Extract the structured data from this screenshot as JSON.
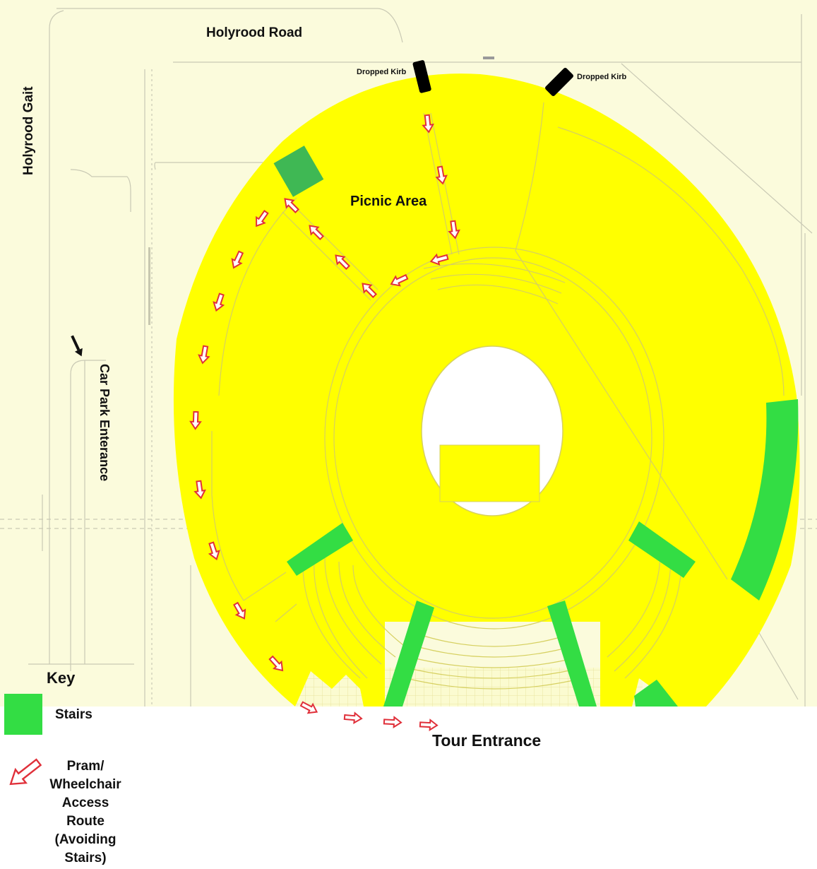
{
  "map": {
    "colors": {
      "site": "#ffff00",
      "stairs": "#33dd44",
      "stairs_dark": "#3fb854",
      "route_arrow": "#e0303a",
      "background": "#fbfbdc",
      "kerb": "#000000"
    },
    "labels": {
      "road_top": "Holyrood Road",
      "road_left": "Holyrood Gait",
      "car_park": "Car Park Enterance",
      "picnic": "Picnic Area",
      "kerb_1": "Dropped Kirb",
      "kerb_2": "Dropped Kirb",
      "tour_entrance": "Tour Entrance"
    },
    "key": {
      "title": "Key",
      "stairs_label": "Stairs",
      "route_label_lines": [
        "Pram/",
        "Wheelchair",
        "Access",
        "Route",
        "(Avoiding",
        "Stairs)"
      ]
    },
    "icons": [
      "dropped-kerb-icon",
      "stairs-swatch-icon",
      "route-arrow-icon",
      "car-park-arrow-icon"
    ]
  }
}
